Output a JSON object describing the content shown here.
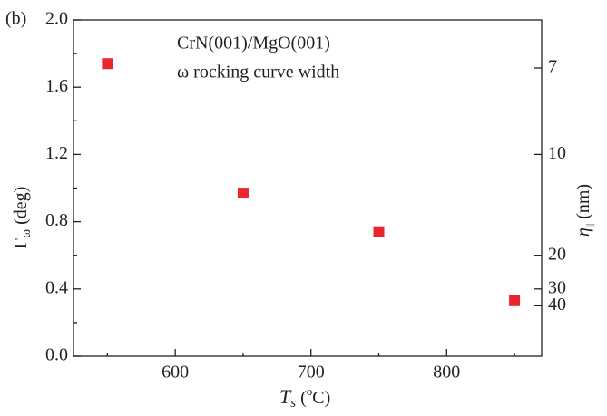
{
  "chart_data": {
    "type": "scatter",
    "panel_label": "(b)",
    "annotations": [
      "CrN(001)/MgO(001)",
      "ω rocking curve width"
    ],
    "xlabel": [
      "T",
      "s",
      " (",
      "o",
      "C)"
    ],
    "ylabel": [
      "Γ",
      "ω",
      " (deg)"
    ],
    "y2label": [
      "η",
      "||",
      " (nm)"
    ],
    "x": [
      550,
      650,
      750,
      850
    ],
    "series": [
      {
        "color": "#e8262b",
        "values": [
          1.74,
          0.97,
          0.74,
          0.33
        ],
        "errors": [
          0.02,
          0.02,
          0.02,
          0.03
        ]
      }
    ],
    "xlim": [
      525,
      870
    ],
    "xticks": [
      600,
      700,
      800
    ],
    "xminorticks": [
      550,
      650,
      750,
      850
    ],
    "ylim": [
      0,
      2
    ],
    "yticks": [
      {
        "value": 0,
        "label": "0.0"
      },
      0.4,
      0.8,
      1.2,
      1.6,
      {
        "value": 2,
        "label": "2.0"
      }
    ],
    "yminorticks": [
      0.2,
      0.6,
      1,
      1.4,
      1.8
    ],
    "y2scale": "reciprocal",
    "y2lim": [
      null,
      6
    ],
    "y2ticks": [
      7,
      10,
      20,
      30,
      40
    ]
  }
}
